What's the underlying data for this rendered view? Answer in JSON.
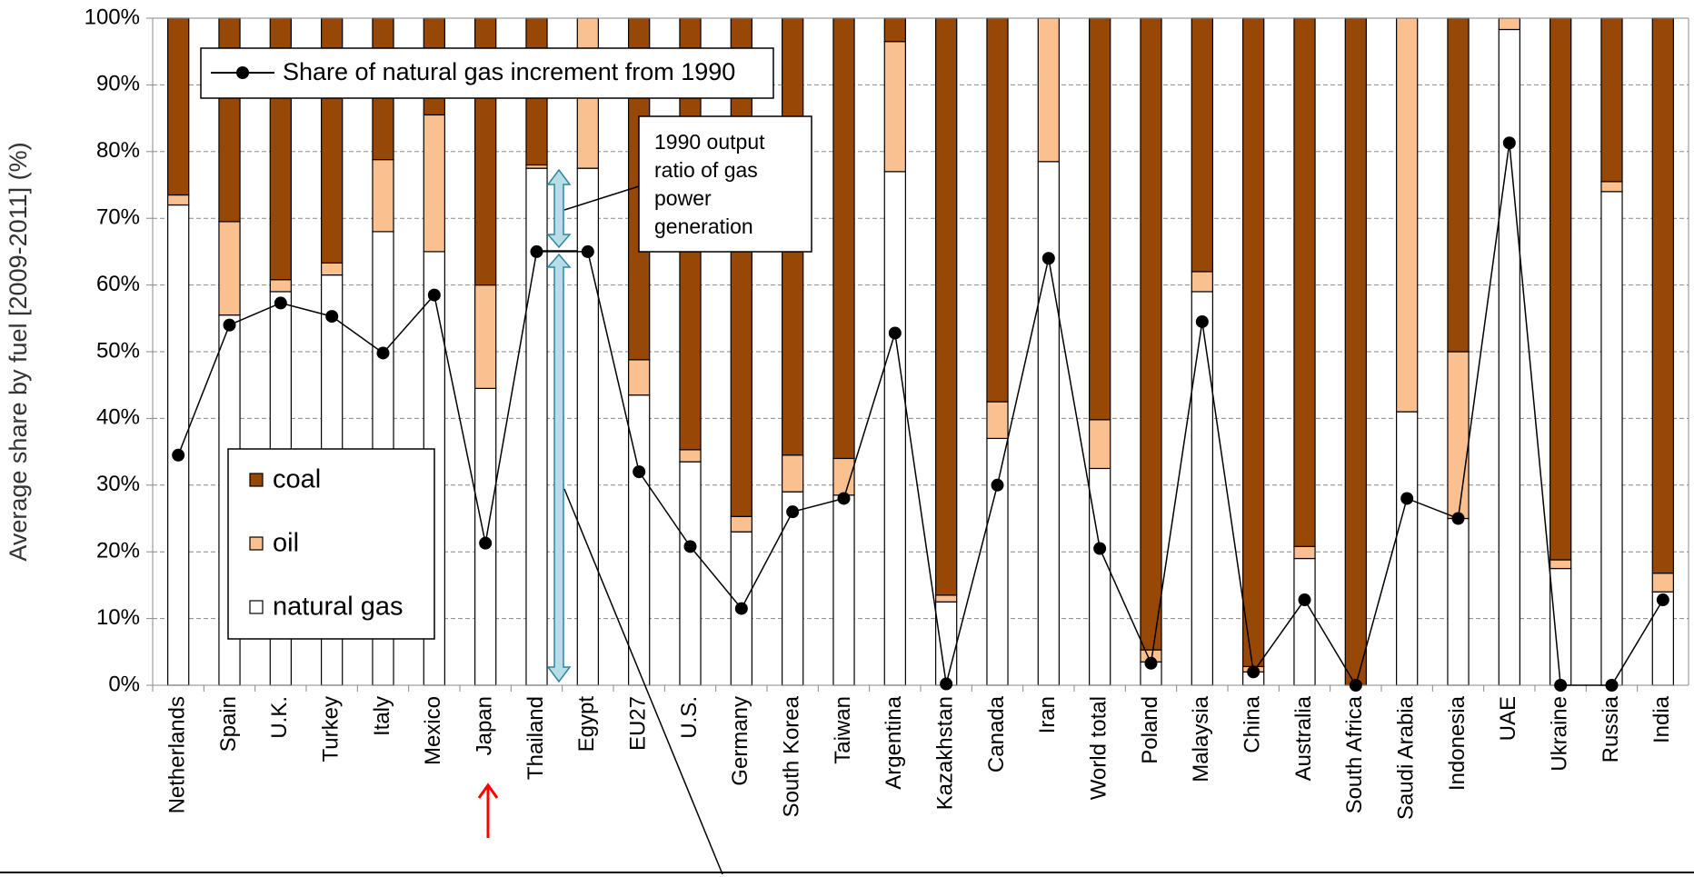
{
  "chart_data": {
    "type": "stacked-bar-line",
    "y_label": "Average share by fuel [2009-2011] (%)",
    "categories": [
      "Netherlands",
      "Spain",
      "U.K.",
      "Turkey",
      "Italy",
      "Mexico",
      "Japan",
      "Thailand",
      "Egypt",
      "EU27",
      "U.S.",
      "Germany",
      "South Korea",
      "Taiwan",
      "Argentina",
      "Kazakhstan",
      "Canada",
      "Iran",
      "World total",
      "Poland",
      "Malaysia",
      "China",
      "Australia",
      "South Africa",
      "Saudi Arabia",
      "Indonesia",
      "UAE",
      "Ukraine",
      "Russia",
      "India"
    ],
    "series": [
      {
        "name": "natural gas",
        "color": "#ffffff",
        "values": [
          72,
          55.5,
          59,
          61.5,
          68,
          65,
          44.5,
          77.5,
          77.5,
          43.5,
          33.5,
          23,
          29,
          28.5,
          77,
          12.5,
          37,
          78.5,
          32.5,
          3.5,
          59,
          2,
          19,
          0,
          41,
          25,
          98.3,
          17.5,
          74,
          14
        ]
      },
      {
        "name": "oil",
        "color": "#fac090",
        "values": [
          1.5,
          14,
          1.8,
          1.8,
          10.8,
          20.5,
          15.5,
          0.5,
          22.5,
          5.3,
          1.8,
          2.3,
          5.5,
          5.5,
          19.5,
          1,
          5.5,
          21.5,
          7.3,
          1.8,
          3,
          0.8,
          1.8,
          0,
          59,
          25,
          1.7,
          1.3,
          1.5,
          2.8
        ]
      },
      {
        "name": "coal",
        "color": "#974706",
        "values": [
          26.5,
          30.5,
          39.2,
          36.7,
          21.2,
          14.5,
          40,
          22,
          0,
          51.2,
          64.7,
          74.7,
          65.5,
          66,
          3.5,
          86.5,
          57.5,
          0,
          60.2,
          94.7,
          38,
          97.2,
          79.2,
          100,
          0,
          50,
          0,
          81.2,
          24.5,
          83.2
        ]
      },
      {
        "name": "Share of natural gas increment from 1990",
        "type": "line",
        "color": "#000000",
        "values": [
          34.5,
          54,
          57.3,
          55.3,
          49.8,
          58.5,
          21.3,
          65,
          65,
          32,
          20.8,
          11.5,
          26,
          28,
          52.8,
          0.2,
          30,
          64,
          20.5,
          3.3,
          54.5,
          2,
          12.8,
          0,
          28,
          25,
          81.3,
          0,
          0,
          12.8
        ]
      }
    ],
    "ylim": [
      0,
      100
    ],
    "yticks": [
      {
        "value": 0,
        "label": "0%"
      },
      {
        "value": 10,
        "label": "10%"
      },
      {
        "value": 20,
        "label": "20%"
      },
      {
        "value": 30,
        "label": "30%"
      },
      {
        "value": 40,
        "label": "40%"
      },
      {
        "value": 50,
        "label": "50%"
      },
      {
        "value": 60,
        "label": "60%"
      },
      {
        "value": 70,
        "label": "70%"
      },
      {
        "value": 80,
        "label": "80%"
      },
      {
        "value": 90,
        "label": "90%"
      },
      {
        "value": 100,
        "label": "100%"
      }
    ],
    "grid": true,
    "annotation_lines": [
      "1990 output",
      "ratio of gas",
      "power",
      "generation"
    ]
  }
}
